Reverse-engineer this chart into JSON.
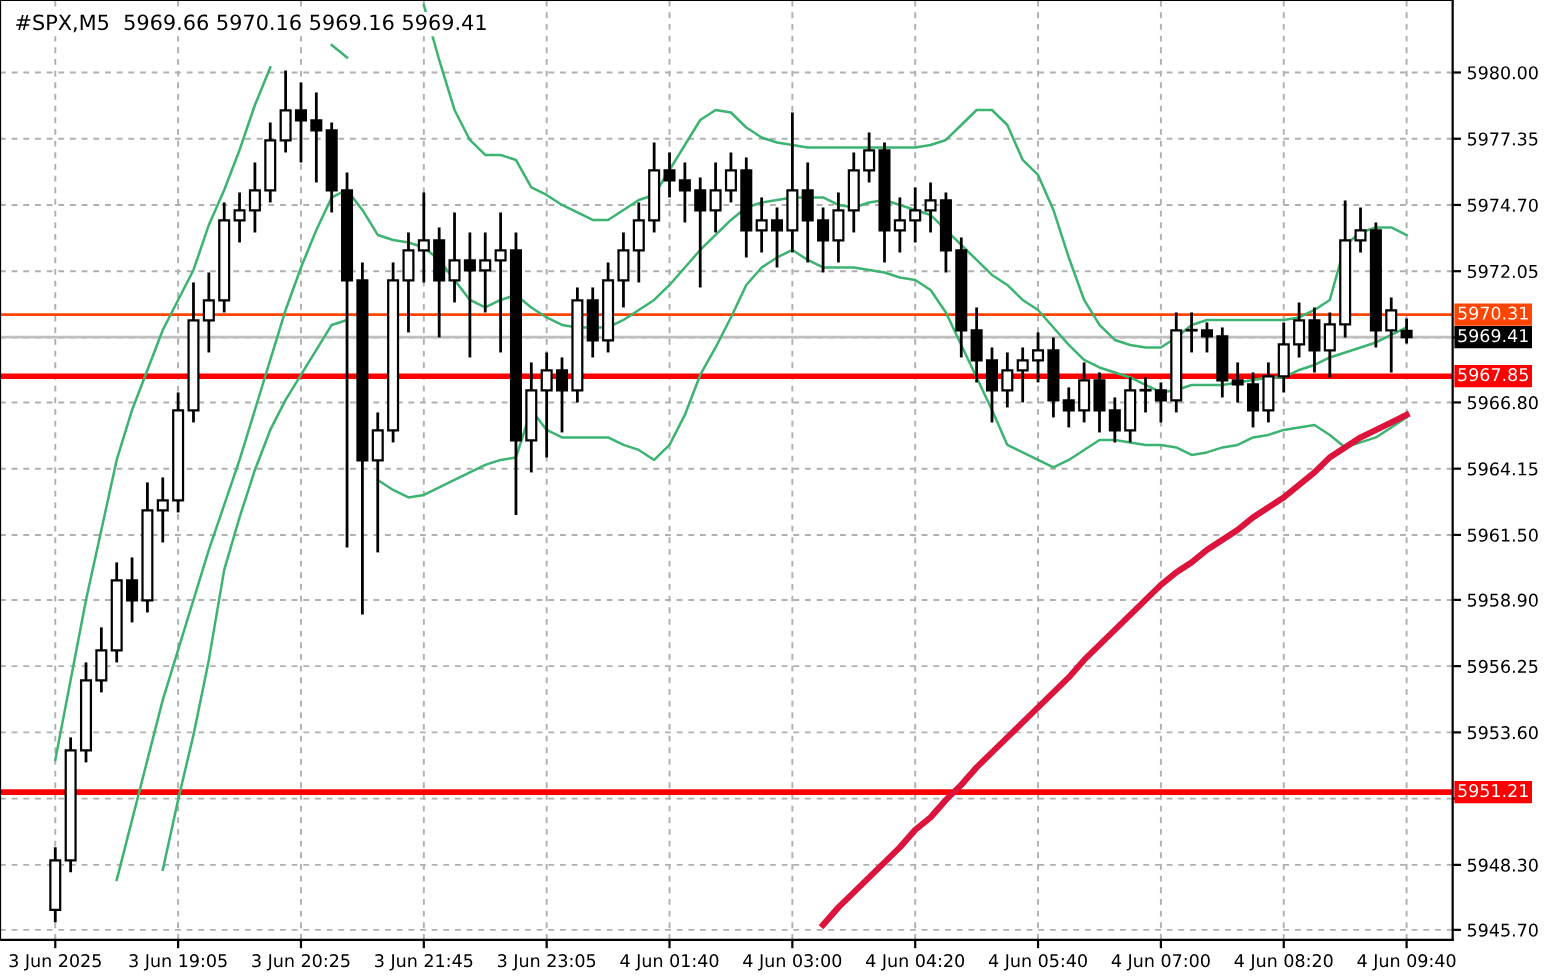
{
  "chart_data": {
    "type": "candlestick",
    "title": "#SPX,M5  5969.66 5970.16 5969.16 5969.41",
    "categories": [
      "3 Jun 2025",
      null,
      null,
      null,
      null,
      null,
      null,
      null,
      "3 Jun 19:05",
      null,
      null,
      null,
      null,
      null,
      null,
      null,
      "3 Jun 20:25",
      null,
      null,
      null,
      null,
      null,
      null,
      null,
      "3 Jun 21:45",
      null,
      null,
      null,
      null,
      null,
      null,
      null,
      "3 Jun 23:05",
      null,
      null,
      null,
      null,
      null,
      null,
      null,
      "4 Jun 01:40",
      null,
      null,
      null,
      null,
      null,
      null,
      null,
      "4 Jun 03:00",
      null,
      null,
      null,
      null,
      null,
      null,
      null,
      "4 Jun 04:20",
      null,
      null,
      null,
      null,
      null,
      null,
      null,
      "4 Jun 05:40",
      null,
      null,
      null,
      null,
      null,
      null,
      null,
      "4 Jun 07:00",
      null,
      null,
      null,
      null,
      null,
      null,
      null,
      "4 Jun 08:20",
      null,
      null,
      null,
      null,
      null,
      null,
      null,
      "4 Jun 09:40"
    ],
    "ohlc": [
      [
        5946.5,
        5949.0,
        5946.0,
        5948.48
      ],
      [
        5948.48,
        5953.4,
        5948.0,
        5952.88
      ],
      [
        5952.88,
        5956.4,
        5952.4,
        5955.68
      ],
      [
        5955.68,
        5957.8,
        5955.2,
        5956.88
      ],
      [
        5956.88,
        5960.4,
        5956.4,
        5959.68
      ],
      [
        5959.68,
        5960.6,
        5958.0,
        5958.88
      ],
      [
        5958.88,
        5963.6,
        5958.4,
        5962.48
      ],
      [
        5962.48,
        5963.8,
        5961.2,
        5962.88
      ],
      [
        5962.88,
        5967.2,
        5962.4,
        5966.48
      ],
      [
        5966.48,
        5971.6,
        5966.0,
        5970.08
      ],
      [
        5970.08,
        5972.0,
        5968.8,
        5970.88
      ],
      [
        5970.88,
        5974.8,
        5970.4,
        5974.08
      ],
      [
        5974.08,
        5975.2,
        5973.2,
        5974.48
      ],
      [
        5974.48,
        5976.4,
        5973.6,
        5975.28
      ],
      [
        5975.28,
        5978.0,
        5974.8,
        5977.28
      ],
      [
        5977.28,
        5980.08,
        5976.8,
        5978.48
      ],
      [
        5978.48,
        5979.6,
        5976.4,
        5978.08
      ],
      [
        5978.08,
        5979.2,
        5975.6,
        5977.68
      ],
      [
        5977.68,
        5978.0,
        5974.4,
        5975.28
      ],
      [
        5975.28,
        5976.0,
        5961.0,
        5971.68
      ],
      [
        5971.68,
        5972.4,
        5958.32,
        5964.48
      ],
      [
        5964.48,
        5966.4,
        5960.8,
        5965.68
      ],
      [
        5965.68,
        5972.4,
        5965.2,
        5971.68
      ],
      [
        5971.68,
        5973.6,
        5969.6,
        5972.88
      ],
      [
        5972.88,
        5975.2,
        5971.6,
        5973.28
      ],
      [
        5973.28,
        5973.8,
        5969.4,
        5971.68
      ],
      [
        5971.68,
        5974.4,
        5970.8,
        5972.48
      ],
      [
        5972.48,
        5973.6,
        5968.6,
        5972.08
      ],
      [
        5972.08,
        5973.6,
        5970.4,
        5972.48
      ],
      [
        5972.48,
        5974.4,
        5968.8,
        5972.88
      ],
      [
        5972.88,
        5973.6,
        5962.3,
        5965.28
      ],
      [
        5965.28,
        5968.4,
        5964.0,
        5967.28
      ],
      [
        5967.28,
        5968.8,
        5964.6,
        5968.08
      ],
      [
        5968.08,
        5968.6,
        5965.6,
        5967.28
      ],
      [
        5967.28,
        5971.4,
        5966.8,
        5970.88
      ],
      [
        5970.88,
        5971.4,
        5968.6,
        5969.28
      ],
      [
        5969.28,
        5972.4,
        5968.8,
        5971.68
      ],
      [
        5971.68,
        5973.6,
        5970.6,
        5972.88
      ],
      [
        5972.88,
        5974.8,
        5971.6,
        5974.08
      ],
      [
        5974.08,
        5977.2,
        5973.6,
        5976.08
      ],
      [
        5976.08,
        5976.8,
        5975.0,
        5975.68
      ],
      [
        5975.68,
        5976.4,
        5974.0,
        5975.28
      ],
      [
        5975.28,
        5975.8,
        5971.4,
        5974.48
      ],
      [
        5974.48,
        5976.4,
        5973.6,
        5975.28
      ],
      [
        5975.28,
        5976.8,
        5974.8,
        5976.08
      ],
      [
        5976.08,
        5976.6,
        5972.6,
        5973.68
      ],
      [
        5973.68,
        5975.0,
        5972.8,
        5974.08
      ],
      [
        5974.08,
        5974.6,
        5972.2,
        5973.68
      ],
      [
        5973.68,
        5978.4,
        5972.8,
        5975.28
      ],
      [
        5975.28,
        5976.4,
        5972.4,
        5974.08
      ],
      [
        5974.08,
        5974.6,
        5972.0,
        5973.28
      ],
      [
        5973.28,
        5975.2,
        5972.4,
        5974.48
      ],
      [
        5974.48,
        5976.8,
        5973.6,
        5976.08
      ],
      [
        5976.08,
        5977.6,
        5975.6,
        5976.88
      ],
      [
        5976.88,
        5977.2,
        5972.4,
        5973.68
      ],
      [
        5973.68,
        5975.0,
        5972.8,
        5974.08
      ],
      [
        5974.08,
        5975.4,
        5973.2,
        5974.48
      ],
      [
        5974.48,
        5975.6,
        5973.6,
        5974.88
      ],
      [
        5974.88,
        5975.2,
        5972.0,
        5972.88
      ],
      [
        5972.88,
        5973.4,
        5968.6,
        5969.68
      ],
      [
        5969.68,
        5970.6,
        5967.6,
        5968.48
      ],
      [
        5968.48,
        5969.0,
        5966.0,
        5967.28
      ],
      [
        5967.28,
        5968.8,
        5966.6,
        5968.08
      ],
      [
        5968.08,
        5969.0,
        5966.8,
        5968.48
      ],
      [
        5968.48,
        5969.6,
        5967.6,
        5968.88
      ],
      [
        5968.88,
        5969.4,
        5966.2,
        5966.88
      ],
      [
        5966.88,
        5967.4,
        5965.8,
        5966.48
      ],
      [
        5966.48,
        5968.4,
        5966.0,
        5967.68
      ],
      [
        5967.68,
        5968.0,
        5965.6,
        5966.48
      ],
      [
        5966.48,
        5967.0,
        5965.2,
        5965.68
      ],
      [
        5965.68,
        5967.8,
        5965.2,
        5967.28
      ],
      [
        5967.28,
        5967.8,
        5966.4,
        5967.28
      ],
      [
        5967.28,
        5967.6,
        5966.0,
        5966.88
      ],
      [
        5966.88,
        5970.4,
        5966.4,
        5969.68
      ],
      [
        5969.68,
        5970.4,
        5968.8,
        5969.68
      ],
      [
        5969.68,
        5970.0,
        5968.8,
        5969.44
      ],
      [
        5969.44,
        5969.8,
        5967.0,
        5967.68
      ],
      [
        5967.68,
        5968.4,
        5966.8,
        5967.52
      ],
      [
        5967.52,
        5968.0,
        5965.8,
        5966.48
      ],
      [
        5966.48,
        5968.4,
        5966.0,
        5967.84
      ],
      [
        5967.84,
        5970.0,
        5967.2,
        5969.12
      ],
      [
        5969.12,
        5970.8,
        5968.6,
        5970.08
      ],
      [
        5970.08,
        5970.6,
        5968.0,
        5968.88
      ],
      [
        5968.88,
        5970.4,
        5967.8,
        5969.92
      ],
      [
        5969.92,
        5974.88,
        5969.4,
        5973.28
      ],
      [
        5973.28,
        5974.6,
        5972.8,
        5973.68
      ],
      [
        5973.68,
        5974.0,
        5969.0,
        5969.68
      ],
      [
        5969.68,
        5971.0,
        5968.0,
        5970.48
      ],
      [
        5969.66,
        5970.16,
        5969.16,
        5969.41
      ]
    ],
    "series": [
      {
        "type": "line",
        "color": "#3cb371",
        "values": [
          5952.5,
          5955.7,
          5958.9,
          5961.7,
          5964.5,
          5966.5,
          5968.1,
          5969.7,
          5970.9,
          5972.1,
          5973.9,
          5975.3,
          5976.9,
          5978.7,
          5980.2,
          null,
          null,
          null,
          5981.1,
          5980.6,
          null,
          null,
          null,
          null,
          5982.7,
          5980.5,
          5978.5,
          5977.3,
          5976.7,
          5976.7,
          5976.5,
          5975.4,
          5975.1,
          5974.7,
          5974.4,
          5974.1,
          5974.1,
          5974.5,
          5974.9,
          5975.1,
          5976.1,
          5977.1,
          5978.1,
          5978.5,
          5978.4,
          5977.8,
          5977.4,
          5977.2,
          5977.1,
          5977.0,
          5977.0,
          5977.0,
          5977.0,
          5977.0,
          5977.0,
          5977.0,
          5977.0,
          5977.1,
          5977.3,
          5977.9,
          5978.5,
          5978.5,
          5977.9,
          5976.5,
          5975.9,
          5974.5,
          5972.6,
          5970.9,
          5969.9,
          5969.3,
          5969.1,
          5969.0,
          5969.0,
          5969.4,
          5969.9,
          5970.1,
          5970.1,
          5970.1,
          5970.1,
          5970.1,
          5970.1,
          5970.2,
          5970.5,
          5970.9,
          5973.1,
          5973.6,
          5973.8,
          5973.8,
          5973.5
        ]
      },
      {
        "type": "line",
        "color": "#3cb371",
        "values": [
          null,
          null,
          null,
          null,
          5947.7,
          5950.1,
          5952.5,
          5954.9,
          5956.9,
          5958.9,
          5960.9,
          5962.7,
          5964.5,
          5966.5,
          5968.5,
          5970.5,
          5972.2,
          5973.7,
          5975.0,
          5975.3,
          5974.5,
          5973.5,
          5973.3,
          5973.2,
          5973.0,
          5972.5,
          5971.7,
          5970.9,
          5970.6,
          5970.9,
          5971.1,
          5970.6,
          5970.2,
          5969.9,
          5969.8,
          5969.8,
          5969.8,
          5970.1,
          5970.5,
          5970.9,
          5971.5,
          5972.2,
          5972.9,
          5973.5,
          5974.1,
          5974.6,
          5974.8,
          5974.9,
          5975.0,
          5975.0,
          5975.0,
          5974.7,
          5974.6,
          5974.8,
          5974.9,
          5974.7,
          5974.5,
          5974.3,
          5973.7,
          5973.1,
          5972.5,
          5971.9,
          5971.5,
          5970.9,
          5970.5,
          5969.8,
          5969.1,
          5968.5,
          5968.2,
          5968.0,
          5967.8,
          5967.5,
          5967.2,
          5967.3,
          5967.5,
          5967.5,
          5967.5,
          5967.6,
          5967.7,
          5967.8,
          5967.8,
          5968.1,
          5968.3,
          5968.6,
          5968.8,
          5969.0,
          5969.2,
          5969.5,
          5969.8
        ]
      },
      {
        "type": "line",
        "color": "#3cb371",
        "values": [
          null,
          null,
          null,
          null,
          null,
          null,
          null,
          5948.1,
          5950.9,
          5953.5,
          5956.5,
          5960.1,
          5962.2,
          5964.1,
          5965.7,
          5966.9,
          5967.9,
          5968.9,
          5969.9,
          5970.1,
          null,
          5963.7,
          5963.3,
          5963.0,
          5963.1,
          5963.4,
          5963.7,
          5964.0,
          5964.3,
          5964.5,
          5964.6,
          5966.5,
          5965.7,
          5965.4,
          5965.4,
          5965.4,
          5965.4,
          5965.1,
          5964.9,
          5964.5,
          5965.1,
          5966.3,
          5967.9,
          5969.0,
          5970.2,
          5971.5,
          5972.2,
          5972.6,
          5972.9,
          5972.5,
          5972.2,
          5972.2,
          5972.2,
          5972.1,
          5972.0,
          5971.8,
          5971.7,
          5971.3,
          5970.4,
          5969.1,
          5967.8,
          5966.5,
          5965.1,
          5964.8,
          5964.5,
          5964.2,
          5964.5,
          5964.9,
          5965.3,
          5965.3,
          5965.2,
          5965.1,
          5965.1,
          5965.0,
          5964.7,
          5964.8,
          5965.0,
          5965.1,
          5965.4,
          5965.5,
          5965.7,
          5965.8,
          5965.9,
          5965.5,
          5965.0,
          5965.2,
          5965.4,
          5965.8,
          5966.2
        ]
      },
      {
        "type": "line",
        "color": "#dc143c",
        "values": [
          null,
          null,
          null,
          null,
          null,
          null,
          null,
          null,
          null,
          null,
          null,
          null,
          null,
          null,
          null,
          null,
          null,
          null,
          null,
          null,
          null,
          null,
          null,
          null,
          null,
          null,
          null,
          null,
          null,
          null,
          null,
          null,
          null,
          null,
          null,
          null,
          null,
          null,
          null,
          null,
          null,
          null,
          null,
          null,
          null,
          null,
          null,
          null,
          null,
          null,
          5945.9,
          5946.6,
          5947.2,
          5947.8,
          5948.4,
          5949.0,
          5949.7,
          5950.2,
          5950.9,
          5951.5,
          5952.2,
          5952.8,
          5953.4,
          5954.0,
          5954.6,
          5955.2,
          5955.8,
          5956.5,
          5957.1,
          5957.7,
          5958.3,
          5958.9,
          5959.5,
          5960.0,
          5960.4,
          5960.9,
          5961.3,
          5961.7,
          5962.2,
          5962.6,
          5963.0,
          5963.5,
          5964.0,
          5964.6,
          5965.0,
          5965.4,
          5965.7,
          5966.0,
          5966.3
        ]
      }
    ],
    "ylim": [
      5945.3,
      5982.9
    ],
    "yticks": [
      {
        "value": 5980.0,
        "label": "5980.00"
      },
      {
        "value": 5977.35,
        "label": "5977.35"
      },
      {
        "value": 5974.7,
        "label": "5974.70"
      },
      {
        "value": 5972.05,
        "label": "5972.05"
      },
      {
        "value": 5969.4,
        "label": null
      },
      {
        "value": 5966.8,
        "label": "5966.80"
      },
      {
        "value": 5964.15,
        "label": "5964.15"
      },
      {
        "value": 5961.5,
        "label": "5961.50"
      },
      {
        "value": 5958.9,
        "label": "5958.90"
      },
      {
        "value": 5956.25,
        "label": "5956.25"
      },
      {
        "value": 5953.6,
        "label": "5953.60"
      },
      {
        "value": 5950.95,
        "label": null
      },
      {
        "value": 5948.3,
        "label": "5948.30"
      },
      {
        "value": 5945.7,
        "label": "5945.70"
      }
    ],
    "ref_lines": [
      {
        "axis": "y",
        "value": 5970.31,
        "label": "5970.31",
        "color": "#ff4500",
        "line_style": "solid"
      },
      {
        "axis": "y",
        "value": 5969.41,
        "label": "5969.41",
        "color": "#c0c0c0",
        "line_style": "solid"
      },
      {
        "axis": "y",
        "value": 5967.85,
        "label": "5967.85",
        "color": "#ff0000",
        "line_style": "solid"
      },
      {
        "axis": "y",
        "value": 5951.21,
        "label": "5951.21",
        "color": "#ff0000",
        "line_style": "solid"
      }
    ],
    "grid": true,
    "legend": false
  }
}
